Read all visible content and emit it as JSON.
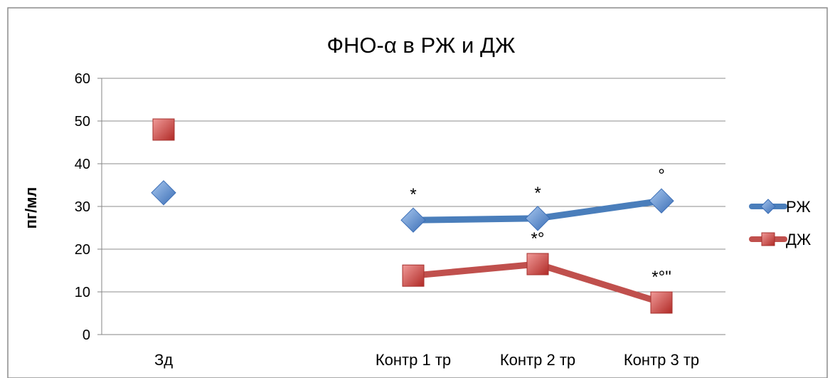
{
  "chart_data": {
    "type": "line",
    "title": "ФНО-α в РЖ и ДЖ",
    "xlabel": "",
    "ylabel": "пг/мл",
    "categories": [
      "Зд",
      "",
      "Контр 1 тр",
      "Контр 2 тр",
      "Контр 3 тр"
    ],
    "ylim": [
      0,
      60
    ],
    "yticks": [
      0,
      10,
      20,
      30,
      40,
      50,
      60
    ],
    "grid": true,
    "legend": "right",
    "series": [
      {
        "name": "РЖ",
        "color": "#4a7ebb",
        "marker": "diamond",
        "values": [
          33.2,
          null,
          26.8,
          27.2,
          31.3
        ],
        "annotations": [
          "",
          "",
          "*",
          "*",
          "°"
        ]
      },
      {
        "name": "ДЖ",
        "color": "#c0504d",
        "marker": "square",
        "values": [
          48.0,
          null,
          13.8,
          16.5,
          7.5
        ],
        "annotations": [
          "",
          "",
          "",
          "*°",
          "*°\""
        ]
      }
    ]
  }
}
